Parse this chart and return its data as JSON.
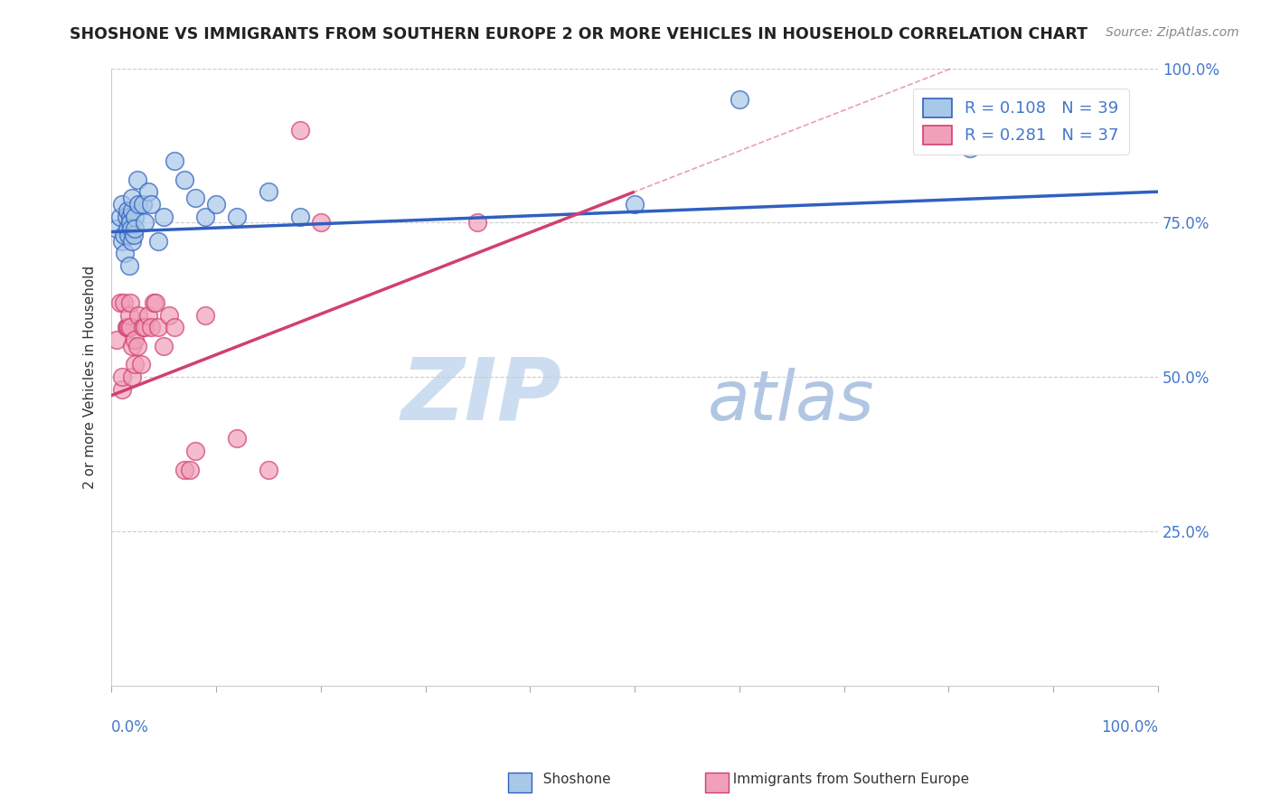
{
  "title": "SHOSHONE VS IMMIGRANTS FROM SOUTHERN EUROPE 2 OR MORE VEHICLES IN HOUSEHOLD CORRELATION CHART",
  "source": "Source: ZipAtlas.com",
  "ylabel": "2 or more Vehicles in Household",
  "xlim": [
    0.0,
    1.0
  ],
  "ylim": [
    0.0,
    1.0
  ],
  "shoshone_color": "#a8c8e8",
  "immigrants_color": "#f0a0b8",
  "shoshone_line_color": "#3060c0",
  "immigrants_line_color": "#d04070",
  "R_shoshone": 0.108,
  "N_shoshone": 39,
  "R_immigrants": 0.281,
  "N_immigrants": 37,
  "shoshone_x": [
    0.005,
    0.008,
    0.01,
    0.01,
    0.012,
    0.013,
    0.014,
    0.015,
    0.015,
    0.016,
    0.017,
    0.018,
    0.018,
    0.019,
    0.02,
    0.02,
    0.02,
    0.021,
    0.022,
    0.022,
    0.025,
    0.026,
    0.03,
    0.032,
    0.035,
    0.038,
    0.045,
    0.05,
    0.06,
    0.07,
    0.08,
    0.09,
    0.1,
    0.12,
    0.15,
    0.18,
    0.5,
    0.82,
    0.6
  ],
  "shoshone_y": [
    0.74,
    0.76,
    0.72,
    0.78,
    0.73,
    0.7,
    0.76,
    0.74,
    0.77,
    0.73,
    0.68,
    0.76,
    0.75,
    0.74,
    0.72,
    0.77,
    0.79,
    0.73,
    0.76,
    0.74,
    0.82,
    0.78,
    0.78,
    0.75,
    0.8,
    0.78,
    0.72,
    0.76,
    0.85,
    0.82,
    0.79,
    0.76,
    0.78,
    0.76,
    0.8,
    0.76,
    0.78,
    0.87,
    0.95
  ],
  "immigrants_x": [
    0.005,
    0.008,
    0.01,
    0.01,
    0.012,
    0.014,
    0.015,
    0.016,
    0.017,
    0.018,
    0.018,
    0.02,
    0.02,
    0.022,
    0.022,
    0.025,
    0.026,
    0.028,
    0.03,
    0.032,
    0.035,
    0.038,
    0.04,
    0.042,
    0.045,
    0.05,
    0.055,
    0.06,
    0.07,
    0.075,
    0.08,
    0.09,
    0.12,
    0.15,
    0.18,
    0.2,
    0.35
  ],
  "immigrants_y": [
    0.56,
    0.62,
    0.48,
    0.5,
    0.62,
    0.58,
    0.58,
    0.58,
    0.6,
    0.62,
    0.58,
    0.5,
    0.55,
    0.56,
    0.52,
    0.55,
    0.6,
    0.52,
    0.58,
    0.58,
    0.6,
    0.58,
    0.62,
    0.62,
    0.58,
    0.55,
    0.6,
    0.58,
    0.35,
    0.35,
    0.38,
    0.6,
    0.4,
    0.35,
    0.9,
    0.75,
    0.75
  ],
  "watermark_zip": "ZIP",
  "watermark_atlas": "atlas",
  "watermark_color_zip": "#c8d8f0",
  "watermark_color_atlas": "#a0b8d0"
}
